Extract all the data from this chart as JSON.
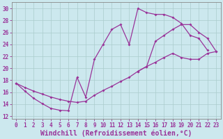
{
  "xlabel": "Windchill (Refroidissement éolien,°C)",
  "xlim": [
    -0.5,
    23.5
  ],
  "ylim": [
    11.5,
    31.0
  ],
  "xticks": [
    0,
    1,
    2,
    3,
    4,
    5,
    6,
    7,
    8,
    9,
    10,
    11,
    12,
    13,
    14,
    15,
    16,
    17,
    18,
    19,
    20,
    21,
    22,
    23
  ],
  "yticks": [
    12,
    14,
    16,
    18,
    20,
    22,
    24,
    26,
    28,
    30
  ],
  "bg_color": "#cce8ee",
  "line_color": "#993399",
  "grid_color": "#aacccc",
  "tick_fontsize": 5.5,
  "xlabel_fontsize": 7.0,
  "line1_x": [
    0,
    1,
    2,
    3,
    4,
    5,
    6,
    7,
    8,
    9,
    10,
    11,
    12,
    13,
    14,
    15,
    16,
    17,
    18,
    19,
    20,
    21,
    22
  ],
  "line1_y": [
    17.5,
    16.2,
    15.0,
    14.1,
    13.3,
    13.0,
    12.9,
    18.5,
    15.2,
    21.5,
    24.0,
    26.5,
    27.3,
    24.0,
    30.0,
    29.3,
    29.0,
    29.0,
    28.5,
    27.5,
    25.5,
    25.0,
    23.0
  ],
  "line2_x": [
    0,
    1,
    2,
    3,
    4,
    5,
    6,
    7,
    8,
    9,
    10,
    11,
    12,
    13,
    14,
    15,
    16,
    17,
    18,
    19,
    20,
    21,
    22,
    23
  ],
  "line2_y": [
    17.5,
    16.8,
    16.2,
    15.7,
    15.2,
    14.8,
    14.5,
    14.3,
    14.5,
    15.5,
    16.3,
    17.0,
    17.8,
    18.5,
    19.5,
    20.3,
    21.0,
    21.8,
    22.5,
    21.8,
    21.5,
    21.5,
    22.5,
    22.8
  ],
  "line3_x": [
    14,
    15,
    16,
    17,
    18,
    19,
    20,
    21,
    22,
    23
  ],
  "line3_y": [
    19.5,
    20.3,
    24.5,
    25.5,
    26.5,
    27.3,
    27.3,
    26.0,
    25.0,
    22.8
  ]
}
